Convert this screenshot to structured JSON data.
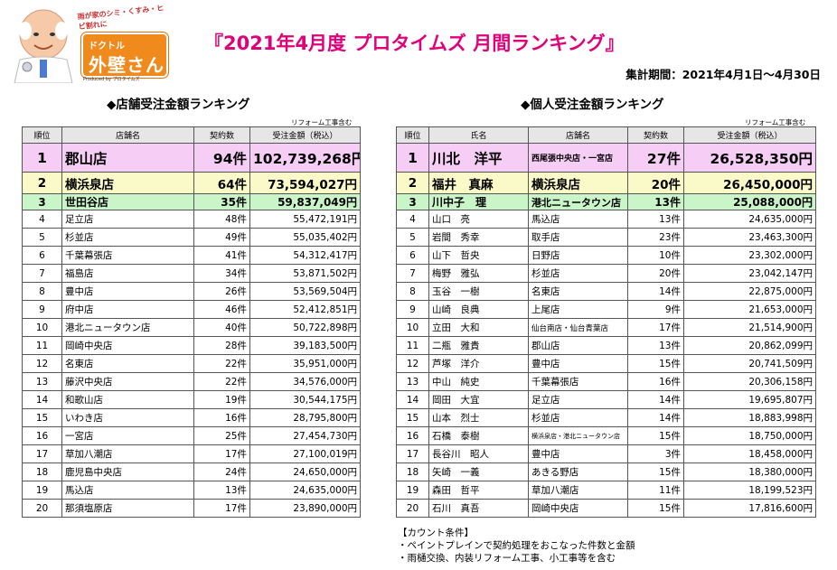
{
  "logo": {
    "tagline": "雨が家のシミ・くすみ・ヒビ割れに",
    "badge_line1": "ドクトル",
    "badge_line2": "外壁さん",
    "produced": "Produced by プロタイムズ"
  },
  "title": "『2021年4月度 プロタイムズ 月間ランキング』",
  "period": "集計期間：2021年4月1日～4月30日",
  "store_ranking": {
    "title": "◆店舗受注金額ランキング",
    "note": "リフォーム工事含む",
    "headers": [
      "順位",
      "店舗名",
      "契約数",
      "受注金額（税込）"
    ],
    "rows": [
      [
        "1",
        "郡山店",
        "94件",
        "102,739,268円"
      ],
      [
        "2",
        "横浜泉店",
        "64件",
        "73,594,027円"
      ],
      [
        "3",
        "世田谷店",
        "35件",
        "59,837,049円"
      ],
      [
        "4",
        "足立店",
        "48件",
        "55,472,191円"
      ],
      [
        "5",
        "杉並店",
        "49件",
        "55,035,402円"
      ],
      [
        "6",
        "千葉幕張店",
        "41件",
        "54,312,417円"
      ],
      [
        "7",
        "福島店",
        "34件",
        "53,871,502円"
      ],
      [
        "8",
        "豊中店",
        "26件",
        "53,569,504円"
      ],
      [
        "9",
        "府中店",
        "46件",
        "52,412,851円"
      ],
      [
        "10",
        "港北ニュータウン店",
        "40件",
        "50,722,898円"
      ],
      [
        "11",
        "岡崎中央店",
        "28件",
        "39,183,500円"
      ],
      [
        "12",
        "名東店",
        "22件",
        "35,951,000円"
      ],
      [
        "13",
        "藤沢中央店",
        "22件",
        "34,576,000円"
      ],
      [
        "14",
        "和歌山店",
        "19件",
        "30,544,175円"
      ],
      [
        "15",
        "いわき店",
        "16件",
        "28,795,800円"
      ],
      [
        "16",
        "一宮店",
        "25件",
        "27,454,730円"
      ],
      [
        "17",
        "草加八潮店",
        "17件",
        "27,100,019円"
      ],
      [
        "18",
        "鹿児島中央店",
        "24件",
        "24,650,000円"
      ],
      [
        "19",
        "馬込店",
        "13件",
        "24,635,000円"
      ],
      [
        "20",
        "那須塩原店",
        "17件",
        "23,890,000円"
      ]
    ]
  },
  "personal_ranking": {
    "title": "◆個人受注金額ランキング",
    "note": "リフォーム工事含む",
    "headers": [
      "順位",
      "氏名",
      "店舗名",
      "契約数",
      "受注金額（税込）"
    ],
    "rows": [
      [
        "1",
        "川北　洋平",
        "西尾張中央店・一宮店",
        "27件",
        "26,528,350円"
      ],
      [
        "2",
        "福井　真麻",
        "横浜泉店",
        "20件",
        "26,450,000円"
      ],
      [
        "3",
        "川中子　理",
        "港北ニュータウン店",
        "13件",
        "25,088,000円"
      ],
      [
        "4",
        "山口　亮",
        "馬込店",
        "13件",
        "24,635,000円"
      ],
      [
        "5",
        "岩間　秀幸",
        "取手店",
        "23件",
        "23,463,300円"
      ],
      [
        "6",
        "山下　哲央",
        "日野店",
        "10件",
        "23,302,000円"
      ],
      [
        "7",
        "梅野　雅弘",
        "杉並店",
        "20件",
        "23,042,147円"
      ],
      [
        "8",
        "玉谷　一樹",
        "名東店",
        "14件",
        "22,875,000円"
      ],
      [
        "9",
        "山崎　良典",
        "上尾店",
        "9件",
        "21,653,000円"
      ],
      [
        "10",
        "立田　大和",
        "仙台南店・仙台青葉店",
        "17件",
        "21,514,900円"
      ],
      [
        "11",
        "二瓶　雅貴",
        "郡山店",
        "13件",
        "20,862,099円"
      ],
      [
        "12",
        "芦塚　洋介",
        "豊中店",
        "15件",
        "20,741,509円"
      ],
      [
        "13",
        "中山　純史",
        "千葉幕張店",
        "16件",
        "20,306,158円"
      ],
      [
        "14",
        "岡田　大宜",
        "足立店",
        "14件",
        "19,695,807円"
      ],
      [
        "15",
        "山本　烈士",
        "杉並店",
        "14件",
        "18,883,998円"
      ],
      [
        "16",
        "石橋　泰樹",
        "横浜泉店・港北ニュータウン店",
        "15件",
        "18,750,000円"
      ],
      [
        "17",
        "長谷川　昭人",
        "豊中店",
        "3件",
        "18,458,000円"
      ],
      [
        "18",
        "矢崎　一義",
        "あきる野店",
        "15件",
        "18,380,000円"
      ],
      [
        "19",
        "森田　哲平",
        "草加八潮店",
        "11件",
        "18,199,523円"
      ],
      [
        "20",
        "石川　真吾",
        "岡崎中央店",
        "15件",
        "17,816,600円"
      ]
    ]
  },
  "count_conditions": {
    "title": "【カウント条件】",
    "lines": [
      "・ペイントプレインで契約処理をおこなった件数と金額",
      "・雨樋交換、内装リフォーム工事、小工事等を含む"
    ]
  }
}
